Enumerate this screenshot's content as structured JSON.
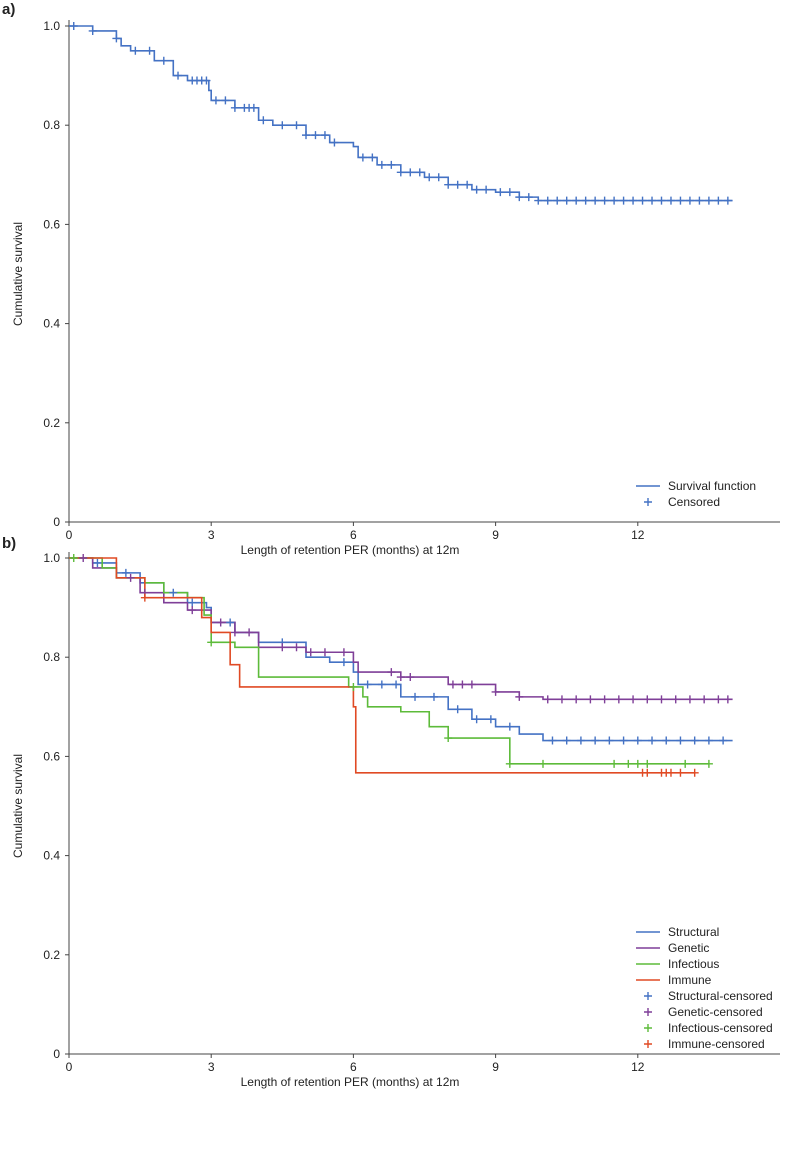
{
  "chart_data": [
    {
      "panel_label": "a)",
      "type": "line",
      "xlabel": "Length of retention PER (months) at 12m",
      "ylabel": "Cumulative survival",
      "xlim": [
        0,
        15
      ],
      "ylim": [
        0,
        1
      ],
      "xticks": [
        "0",
        "3",
        "6",
        "9",
        "12"
      ],
      "xtick_values": [
        0,
        3,
        6,
        9,
        12
      ],
      "yticks": [
        "0",
        "0.2",
        "0.4",
        "0.6",
        "0.8",
        "1.0"
      ],
      "ytick_values": [
        0,
        0.2,
        0.4,
        0.6,
        0.8,
        1.0
      ],
      "legend_position": "bottom-right",
      "series": [
        {
          "name": "Survival function",
          "censored_label": "Censored",
          "color": "#4472c4",
          "points": [
            [
              0,
              1
            ],
            [
              0.5,
              0.99
            ],
            [
              1,
              0.975
            ],
            [
              1.1,
              0.96
            ],
            [
              1.3,
              0.95
            ],
            [
              1.8,
              0.93
            ],
            [
              2.2,
              0.9
            ],
            [
              2.5,
              0.89
            ],
            [
              2.95,
              0.87
            ],
            [
              3,
              0.85
            ],
            [
              3.5,
              0.835
            ],
            [
              4,
              0.81
            ],
            [
              4.3,
              0.8
            ],
            [
              5,
              0.78
            ],
            [
              5.5,
              0.765
            ],
            [
              6,
              0.757
            ],
            [
              6.1,
              0.735
            ],
            [
              6.5,
              0.72
            ],
            [
              7,
              0.705
            ],
            [
              7.5,
              0.695
            ],
            [
              8,
              0.68
            ],
            [
              8.5,
              0.67
            ],
            [
              9,
              0.665
            ],
            [
              9.5,
              0.655
            ],
            [
              9.9,
              0.648
            ],
            [
              14,
              0.648
            ]
          ],
          "censored": [
            0.1,
            0.5,
            1.0,
            1.4,
            1.7,
            2.0,
            2.3,
            2.6,
            2.7,
            2.8,
            2.9,
            3.1,
            3.3,
            3.5,
            3.7,
            3.8,
            3.9,
            4.1,
            4.5,
            4.8,
            5.0,
            5.2,
            5.4,
            5.6,
            6.2,
            6.4,
            6.6,
            6.8,
            7.0,
            7.2,
            7.4,
            7.6,
            7.8,
            8.0,
            8.2,
            8.4,
            8.6,
            8.8,
            9.1,
            9.3,
            9.5,
            9.7,
            9.9,
            10.1,
            10.3,
            10.5,
            10.7,
            10.9,
            11.1,
            11.3,
            11.5,
            11.7,
            11.9,
            12.1,
            12.3,
            12.5,
            12.7,
            12.9,
            13.1,
            13.3,
            13.5,
            13.7,
            13.9
          ]
        }
      ]
    },
    {
      "panel_label": "b)",
      "type": "line",
      "xlabel": "Length of retention PER (months) at 12m",
      "ylabel": "Cumulative survival",
      "xlim": [
        0,
        15
      ],
      "ylim": [
        0,
        1
      ],
      "xticks": [
        "0",
        "3",
        "6",
        "9",
        "12"
      ],
      "xtick_values": [
        0,
        3,
        6,
        9,
        12
      ],
      "yticks": [
        "0",
        "0.2",
        "0.4",
        "0.6",
        "0.8",
        "1.0"
      ],
      "ytick_values": [
        0,
        0.2,
        0.4,
        0.6,
        0.8,
        1.0
      ],
      "legend_position": "bottom-right",
      "series": [
        {
          "name": "Structural",
          "censored_label": "Structural-censored",
          "color": "#4472c4",
          "points": [
            [
              0,
              1
            ],
            [
              0.5,
              0.99
            ],
            [
              1,
              0.97
            ],
            [
              1.5,
              0.95
            ],
            [
              2,
              0.93
            ],
            [
              2.5,
              0.91
            ],
            [
              2.9,
              0.9
            ],
            [
              3,
              0.87
            ],
            [
              3.5,
              0.85
            ],
            [
              4,
              0.83
            ],
            [
              5,
              0.8
            ],
            [
              5.5,
              0.79
            ],
            [
              6,
              0.77
            ],
            [
              6.1,
              0.745
            ],
            [
              7,
              0.72
            ],
            [
              8,
              0.695
            ],
            [
              8.5,
              0.675
            ],
            [
              9,
              0.66
            ],
            [
              9.5,
              0.645
            ],
            [
              10,
              0.632
            ],
            [
              14,
              0.632
            ]
          ],
          "censored": [
            0.6,
            1.2,
            2.2,
            2.6,
            3.4,
            4.5,
            5.8,
            6.3,
            6.6,
            6.9,
            7.3,
            7.7,
            8.2,
            8.6,
            8.9,
            9.3,
            10.2,
            10.5,
            10.8,
            11.1,
            11.4,
            11.7,
            12,
            12.3,
            12.6,
            12.9,
            13.2,
            13.5,
            13.8
          ]
        },
        {
          "name": "Genetic",
          "censored_label": "Genetic-censored",
          "color": "#7f3f98",
          "points": [
            [
              0,
              1
            ],
            [
              0.5,
              0.98
            ],
            [
              1,
              0.96
            ],
            [
              1.5,
              0.93
            ],
            [
              2,
              0.91
            ],
            [
              2.5,
              0.895
            ],
            [
              3,
              0.87
            ],
            [
              3.5,
              0.85
            ],
            [
              4,
              0.82
            ],
            [
              5,
              0.81
            ],
            [
              6,
              0.79
            ],
            [
              6.1,
              0.77
            ],
            [
              7,
              0.76
            ],
            [
              8,
              0.745
            ],
            [
              9,
              0.73
            ],
            [
              9.5,
              0.72
            ],
            [
              10,
              0.715
            ],
            [
              14,
              0.715
            ]
          ],
          "censored": [
            0.3,
            1.3,
            1.6,
            2.6,
            3.2,
            3.5,
            3.8,
            4.5,
            4.8,
            5.1,
            5.4,
            5.8,
            6.8,
            7.0,
            7.2,
            8.1,
            8.3,
            8.5,
            9.0,
            9.5,
            10.1,
            10.4,
            10.7,
            11.0,
            11.3,
            11.6,
            11.9,
            12.2,
            12.5,
            12.8,
            13.1,
            13.4,
            13.7,
            13.9
          ]
        },
        {
          "name": "Infectious",
          "censored_label": "Infectious-censored",
          "color": "#5dbb3a",
          "points": [
            [
              0,
              1
            ],
            [
              0.7,
              0.98
            ],
            [
              1,
              0.96
            ],
            [
              1.6,
              0.95
            ],
            [
              2,
              0.93
            ],
            [
              2.5,
              0.92
            ],
            [
              2.85,
              0.885
            ],
            [
              3,
              0.83
            ],
            [
              3.2,
              0.83
            ],
            [
              3.5,
              0.82
            ],
            [
              4,
              0.76
            ],
            [
              5.5,
              0.76
            ],
            [
              5.9,
              0.74
            ],
            [
              6.2,
              0.72
            ],
            [
              6.3,
              0.7
            ],
            [
              7,
              0.69
            ],
            [
              7.6,
              0.66
            ],
            [
              8,
              0.637
            ],
            [
              9,
              0.637
            ],
            [
              9.3,
              0.585
            ],
            [
              13.5,
              0.585
            ]
          ],
          "censored": [
            0.1,
            3.0,
            6.0,
            8.0,
            9.3,
            10.0,
            11.5,
            11.8,
            12.0,
            12.2,
            13.0,
            13.5
          ]
        },
        {
          "name": "Immune",
          "censored_label": "Immune-censored",
          "color": "#e04a24",
          "points": [
            [
              0,
              1
            ],
            [
              0.9,
              1
            ],
            [
              1,
              0.96
            ],
            [
              1.6,
              0.92
            ],
            [
              2.7,
              0.92
            ],
            [
              2.8,
              0.88
            ],
            [
              3,
              0.85
            ],
            [
              3.4,
              0.785
            ],
            [
              3.6,
              0.74
            ],
            [
              5.9,
              0.74
            ],
            [
              6,
              0.7
            ],
            [
              6.05,
              0.567
            ],
            [
              13.2,
              0.567
            ]
          ],
          "censored": [
            1.6,
            12.1,
            12.2,
            12.5,
            12.6,
            12.7,
            12.9,
            13.2
          ]
        }
      ]
    }
  ]
}
